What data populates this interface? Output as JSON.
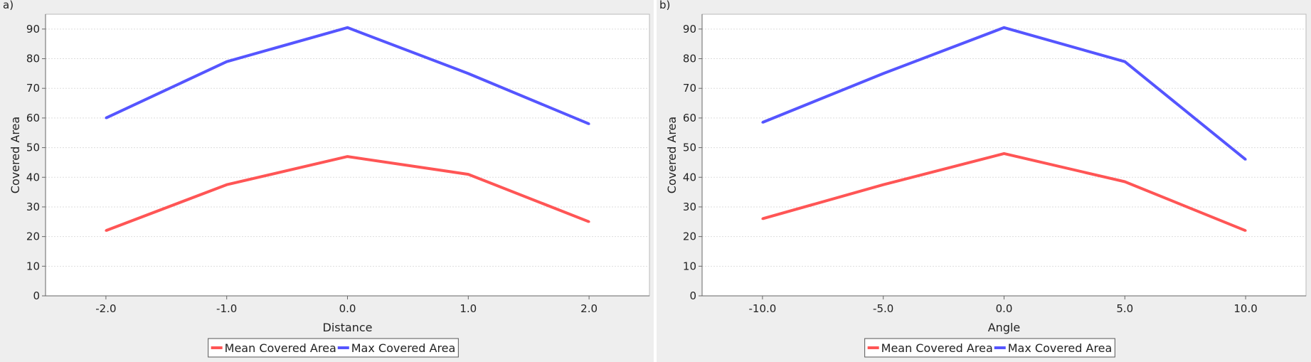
{
  "chart_data": [
    {
      "type": "line",
      "panel_label": "a)",
      "title": "",
      "xlabel": "Distance",
      "ylabel": "Covered Area",
      "categories": [
        "-2.0",
        "-1.0",
        "0.0",
        "1.0",
        "2.0"
      ],
      "yticks": [
        0,
        10,
        20,
        30,
        40,
        50,
        60,
        70,
        80,
        90
      ],
      "ylim": [
        0,
        95
      ],
      "grid": true,
      "legend_position": "bottom",
      "series": [
        {
          "name": "Mean Covered Area",
          "color": "#ff5555",
          "values": [
            22,
            37.5,
            47,
            41,
            25
          ]
        },
        {
          "name": "Max Covered Area",
          "color": "#5555ff",
          "values": [
            60,
            79,
            90.5,
            75,
            58
          ]
        }
      ]
    },
    {
      "type": "line",
      "panel_label": "b)",
      "title": "",
      "xlabel": "Angle",
      "ylabel": "Covered Area",
      "categories": [
        "-10.0",
        "-5.0",
        "0.0",
        "5.0",
        "10.0"
      ],
      "yticks": [
        0,
        10,
        20,
        30,
        40,
        50,
        60,
        70,
        80,
        90
      ],
      "ylim": [
        0,
        95
      ],
      "grid": true,
      "legend_position": "bottom",
      "series": [
        {
          "name": "Mean Covered Area",
          "color": "#ff5555",
          "values": [
            26,
            37.5,
            48,
            38.5,
            22
          ]
        },
        {
          "name": "Max Covered Area",
          "color": "#5555ff",
          "values": [
            58.5,
            75,
            90.5,
            79,
            46
          ]
        }
      ]
    }
  ]
}
